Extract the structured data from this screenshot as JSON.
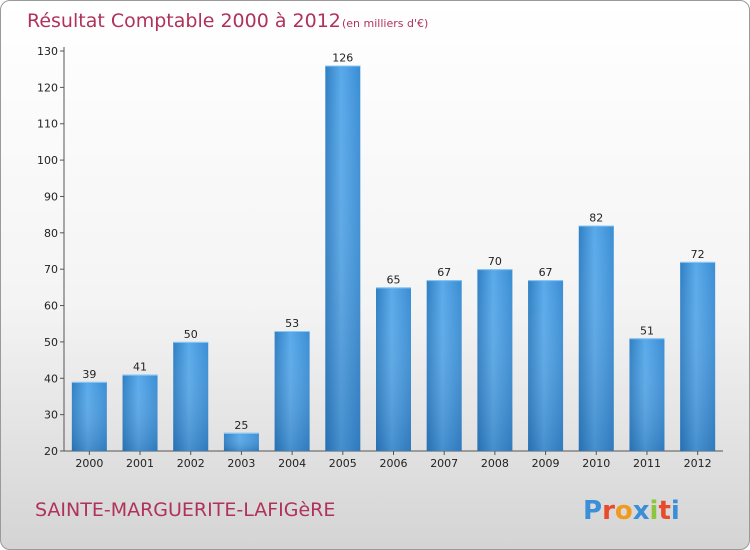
{
  "chart_data": {
    "type": "bar",
    "title": "Résultat Comptable 2000 à 2012",
    "subtitle": "(en milliers d'€)",
    "xlabel": "",
    "ylabel": "",
    "categories": [
      "2000",
      "2001",
      "2002",
      "2003",
      "2004",
      "2005",
      "2006",
      "2007",
      "2008",
      "2009",
      "2010",
      "2011",
      "2012"
    ],
    "values": [
      39,
      41,
      50,
      25,
      53,
      126,
      65,
      67,
      70,
      67,
      82,
      51,
      72
    ],
    "ylim": [
      20,
      130
    ],
    "yticks": [
      20,
      30,
      40,
      50,
      60,
      70,
      80,
      90,
      100,
      110,
      120,
      130
    ],
    "grid": false,
    "bar_color": "#4a9ede"
  },
  "footer": {
    "town": "SAINTE-MARGUERITE-LAFIGèRE",
    "brand": "Proxiti"
  },
  "colors": {
    "title": "#b0325a",
    "brand": [
      "#3b8fd8",
      "#e84b2c",
      "#f29a1e",
      "#3b8fd8",
      "#8cc63f",
      "#e84b2c",
      "#3b8fd8"
    ]
  }
}
